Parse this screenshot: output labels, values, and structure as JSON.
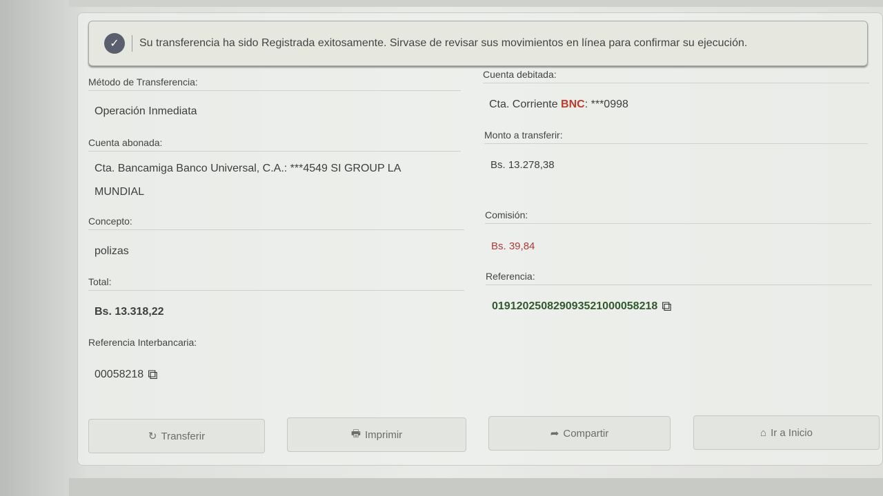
{
  "alert": {
    "icon": "check-circle-icon",
    "message": "Su transferencia ha sido Registrada exitosamente. Sirvase de revisar sus movimientos en línea para confirmar su ejecución."
  },
  "left": {
    "metodo_label": "Método de Transferencia:",
    "metodo_value": "Operación Inmediata",
    "abonada_label": "Cuenta abonada:",
    "abonada_value": "Cta. Bancamiga Banco Universal, C.A.: ***4549 SI GROUP LA MUNDIAL",
    "concepto_label": "Concepto:",
    "concepto_value": "polizas",
    "total_label": "Total:",
    "total_value": "Bs. 13.318,22",
    "ref_inter_label": "Referencia Interbancaria:",
    "ref_inter_value": "00058218"
  },
  "right": {
    "debitada_label": "Cuenta debitada:",
    "debitada_prefix": "Cta. Corriente ",
    "debitada_bank": "BNC",
    "debitada_suffix": ": ***0998",
    "monto_label": "Monto a transferir:",
    "monto_value": "Bs. 13.278,38",
    "comision_label": "Comisión:",
    "comision_value": "Bs. 39,84",
    "referencia_label": "Referencia:",
    "referencia_value": "019120250829093521000058218"
  },
  "colors": {
    "bank": "#c0392b",
    "commission": "#b03a3a",
    "reference": "#2f5a2c"
  },
  "buttons": [
    {
      "label": "Transferir",
      "icon": "refresh-icon"
    },
    {
      "label": "Imprimir",
      "icon": "print-icon"
    },
    {
      "label": "Compartir",
      "icon": "share-icon"
    },
    {
      "label": "Ir a Inicio",
      "icon": "home-icon"
    }
  ]
}
